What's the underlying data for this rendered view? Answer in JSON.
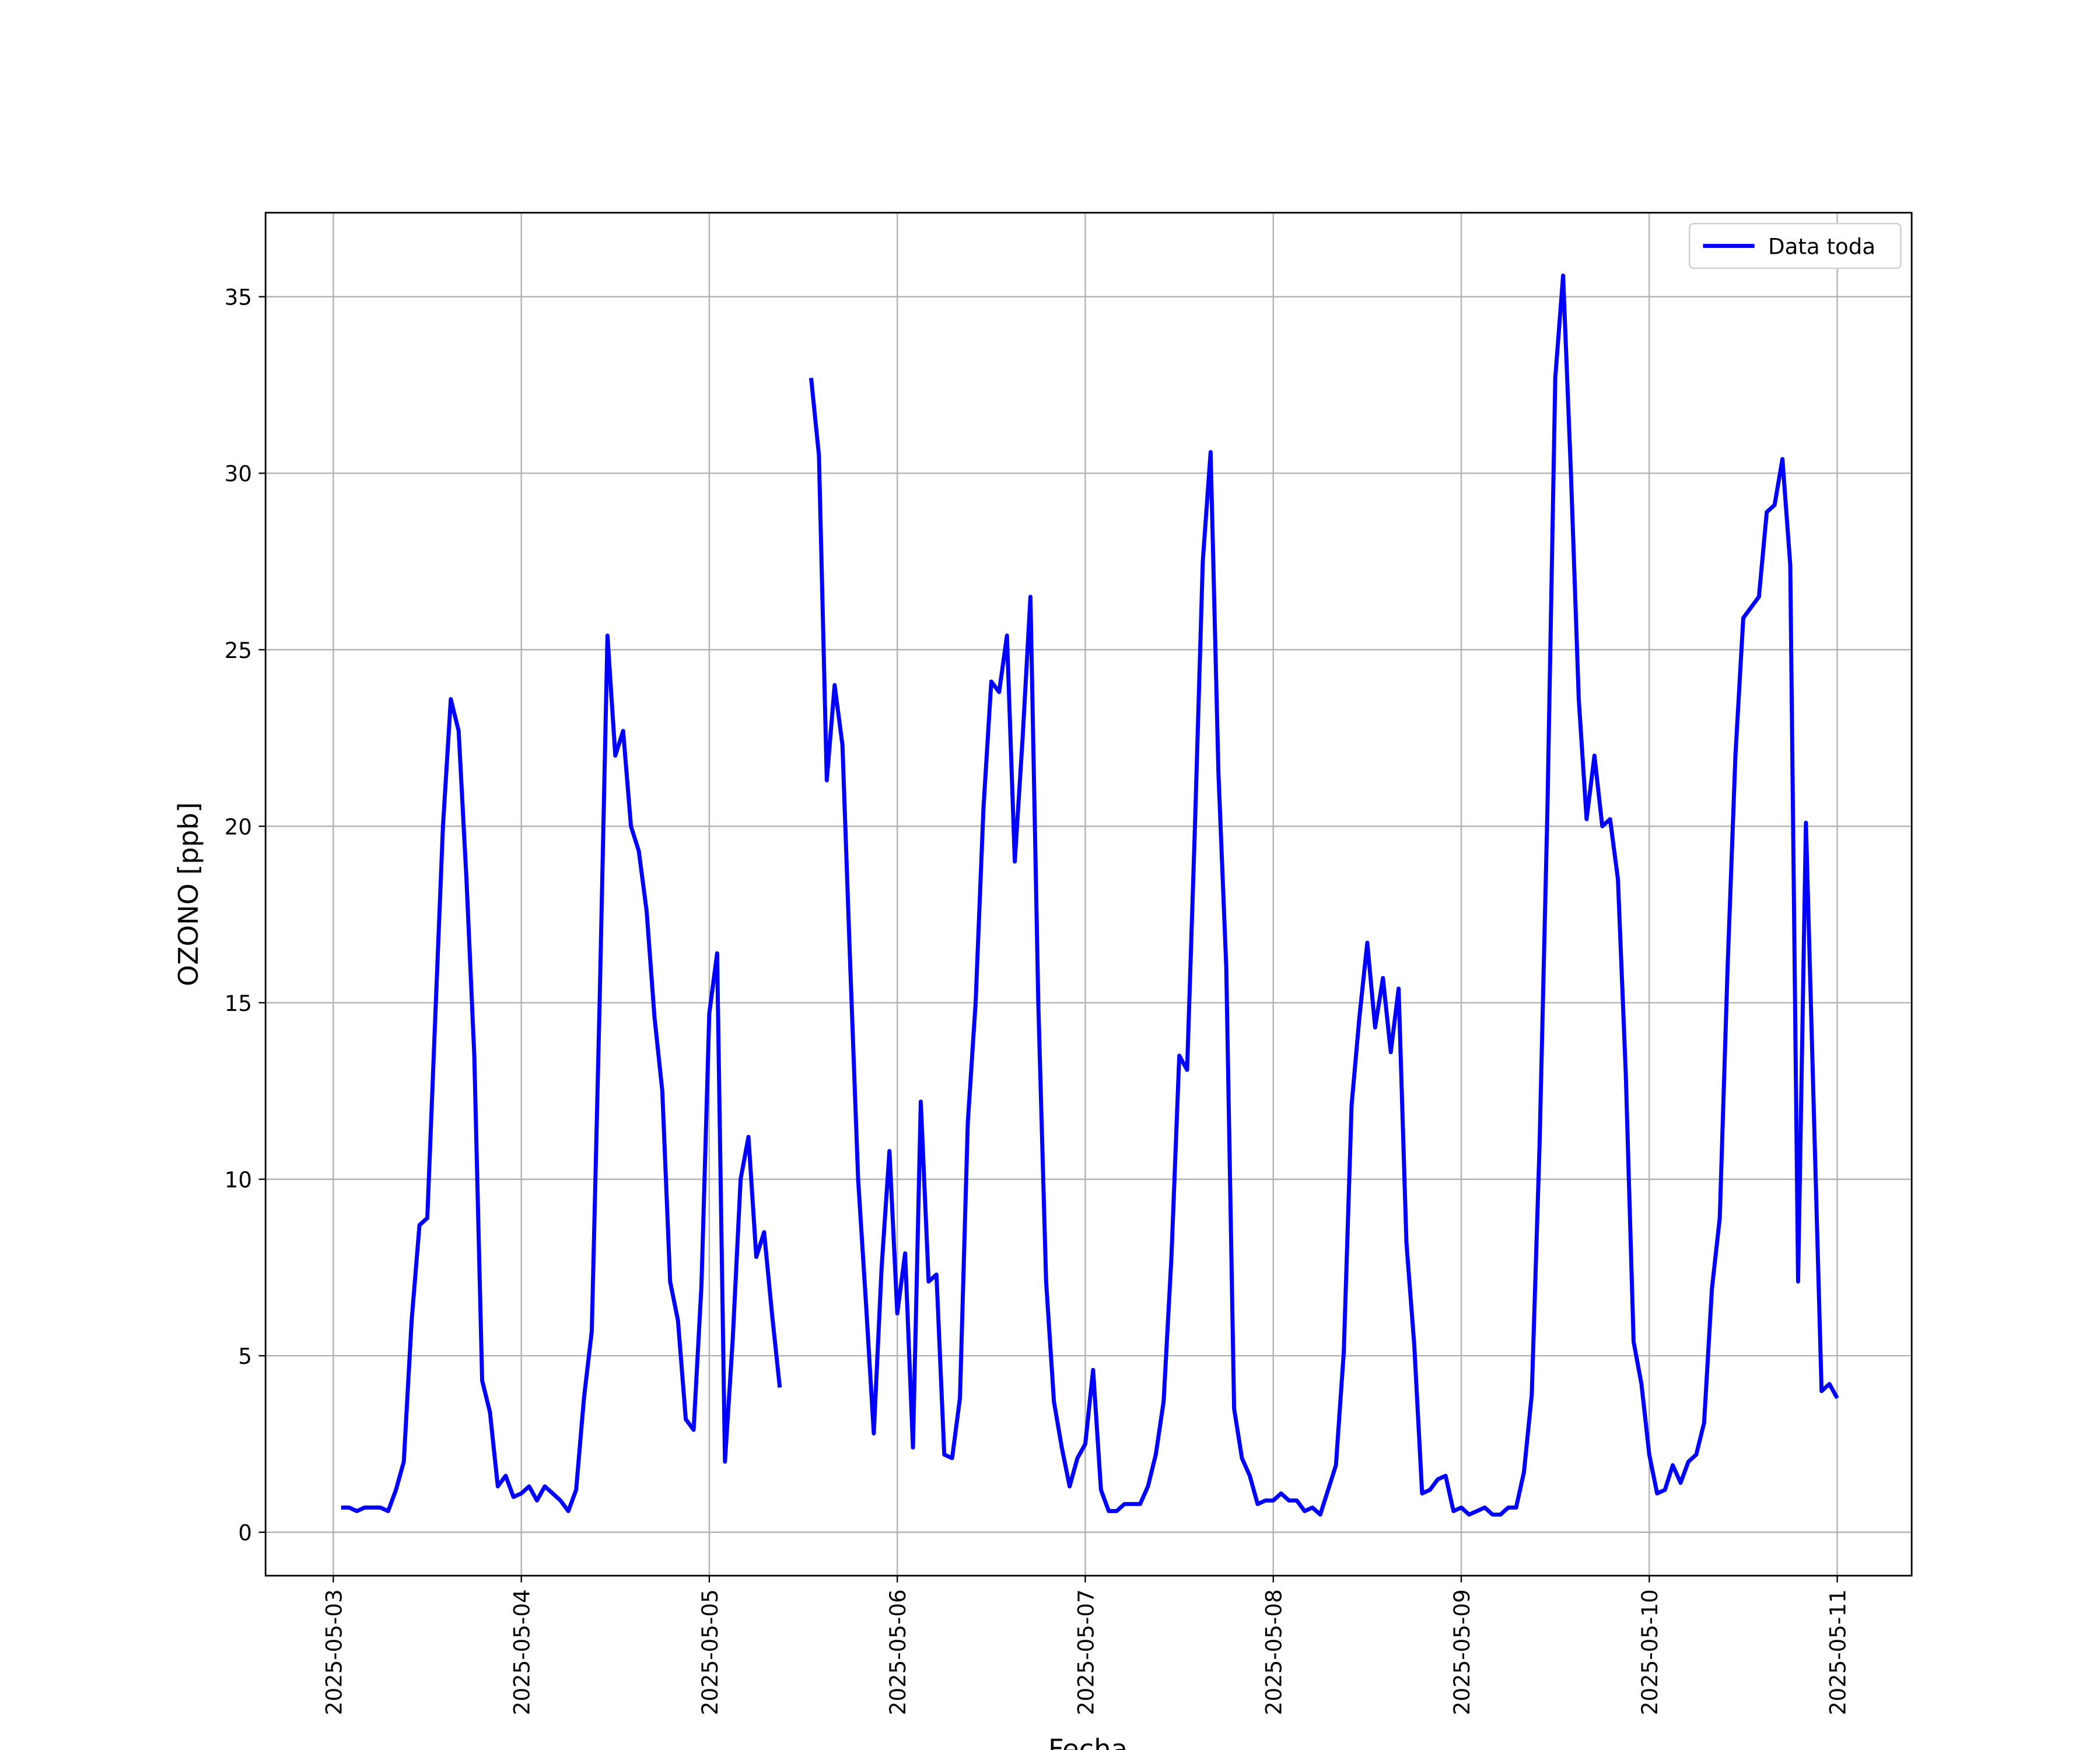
{
  "chart_data": {
    "type": "line",
    "xlabel": "Fecha",
    "ylabel": "OZONO [ppb]",
    "x": [
      1,
      2,
      3,
      4,
      5,
      6,
      7,
      8,
      9,
      10,
      11,
      12,
      13,
      14,
      15,
      16,
      17,
      18,
      19,
      20,
      21,
      22,
      23,
      24,
      25,
      26,
      27,
      28,
      29,
      30,
      31,
      32,
      33,
      34,
      35,
      36,
      37,
      38,
      39,
      40,
      41,
      42,
      43,
      44,
      45,
      46,
      47,
      48,
      49,
      50,
      51,
      52,
      53,
      54,
      55,
      56,
      57,
      58,
      59,
      60,
      61,
      62,
      63,
      64,
      65,
      66,
      67,
      68,
      69,
      70,
      71,
      72,
      73,
      74,
      75,
      76,
      77,
      78,
      79,
      80,
      81,
      82,
      83,
      84,
      85,
      86,
      87,
      88,
      89,
      90,
      91,
      92,
      93,
      94,
      95,
      96,
      97,
      98,
      99,
      100,
      101,
      102,
      103,
      104,
      105,
      106,
      107,
      108,
      109,
      110,
      111,
      112,
      113,
      114,
      115,
      116,
      117,
      118,
      119,
      120,
      121,
      122,
      123,
      124,
      125,
      126,
      127,
      128,
      129,
      130,
      131,
      132,
      133,
      134,
      135,
      136,
      137,
      138,
      139,
      140,
      141,
      142,
      143,
      144,
      145,
      146,
      147,
      148,
      149,
      150,
      151,
      152,
      153,
      154,
      155,
      156,
      157,
      158,
      159,
      160,
      161,
      162,
      163,
      164,
      165,
      166,
      167,
      168,
      169,
      170,
      171,
      172,
      173,
      174,
      175,
      176,
      177,
      178,
      179,
      180,
      181,
      182,
      183,
      184,
      185,
      186,
      187,
      188,
      189,
      190,
      191,
      192
    ],
    "series": [
      {
        "name": "Data toda",
        "color": "#0000ff",
        "values": [
          0.7,
          0.7,
          0.6,
          0.7,
          0.7,
          0.7,
          0.6,
          1.2,
          2.0,
          6.0,
          8.7,
          8.9,
          14.5,
          20.0,
          23.6,
          22.7,
          18.5,
          13.5,
          4.3,
          3.4,
          1.3,
          1.6,
          1.0,
          1.1,
          1.3,
          0.9,
          1.3,
          1.1,
          0.9,
          0.6,
          1.2,
          3.8,
          5.7,
          15,
          25.4,
          22.0,
          22.7,
          20.0,
          19.3,
          17.6,
          14.6,
          12.5,
          7.1,
          6.0,
          3.2,
          2.9,
          7.0,
          14.7,
          16.4,
          2.0,
          5.5,
          10.0,
          11.2,
          7.8,
          8.5,
          6.2,
          4.1,
          null,
          null,
          null,
          32.7,
          30.5,
          21.3,
          24.0,
          22.3,
          16,
          10,
          6.5,
          2.8,
          7.5,
          10.8,
          6.2,
          7.9,
          2.4,
          12.2,
          7.1,
          7.3,
          2.2,
          2.1,
          3.8,
          11.6,
          15,
          20.5,
          24.1,
          23.8,
          25.4,
          19.0,
          22.5,
          26.5,
          15,
          7.1,
          3.7,
          2.4,
          1.3,
          2.1,
          2.5,
          4.6,
          1.2,
          0.6,
          0.6,
          0.8,
          0.8,
          0.8,
          1.3,
          2.2,
          3.7,
          7.8,
          13.5,
          13.1,
          20,
          27.5,
          30.6,
          21.5,
          16.0,
          3.5,
          2.1,
          1.6,
          0.8,
          0.9,
          0.9,
          1.1,
          0.9,
          0.9,
          0.6,
          0.7,
          0.5,
          1.2,
          1.9,
          5.1,
          12.1,
          14.6,
          16.7,
          14.3,
          15.7,
          13.6,
          15.4,
          8.2,
          5.3,
          1.1,
          1.2,
          1.5,
          1.6,
          0.6,
          0.7,
          0.5,
          0.6,
          0.7,
          0.5,
          0.5,
          0.7,
          0.7,
          1.7,
          3.9,
          11,
          20.5,
          32.7,
          35.6,
          30,
          23.6,
          20.2,
          22.0,
          20.0,
          20.2,
          18.5,
          13,
          5.4,
          4.2,
          2.2,
          1.1,
          1.2,
          1.9,
          1.4,
          2.0,
          2.2,
          3.1,
          6.9,
          8.9,
          16,
          22,
          25.9,
          26.2,
          26.5,
          28.9,
          29.1,
          30.4,
          27.4,
          7.1,
          20.1,
          12,
          4.0,
          4.2,
          3.8
        ]
      }
    ],
    "xlim": [
      -8.65,
      201.5
    ],
    "xticks": [
      {
        "value": 0,
        "label": "2025-05-03"
      },
      {
        "value": 24,
        "label": "2025-05-04"
      },
      {
        "value": 48,
        "label": "2025-05-05"
      },
      {
        "value": 72,
        "label": "2025-05-06"
      },
      {
        "value": 96,
        "label": "2025-05-07"
      },
      {
        "value": 120,
        "label": "2025-05-08"
      },
      {
        "value": 144,
        "label": "2025-05-09"
      },
      {
        "value": 168,
        "label": "2025-05-10"
      },
      {
        "value": 192,
        "label": "2025-05-11"
      }
    ],
    "ylim": [
      -1.23,
      37.38
    ],
    "yticks": [
      0,
      5,
      10,
      15,
      20,
      25,
      30,
      35
    ],
    "grid": true,
    "legend": "upper right"
  }
}
